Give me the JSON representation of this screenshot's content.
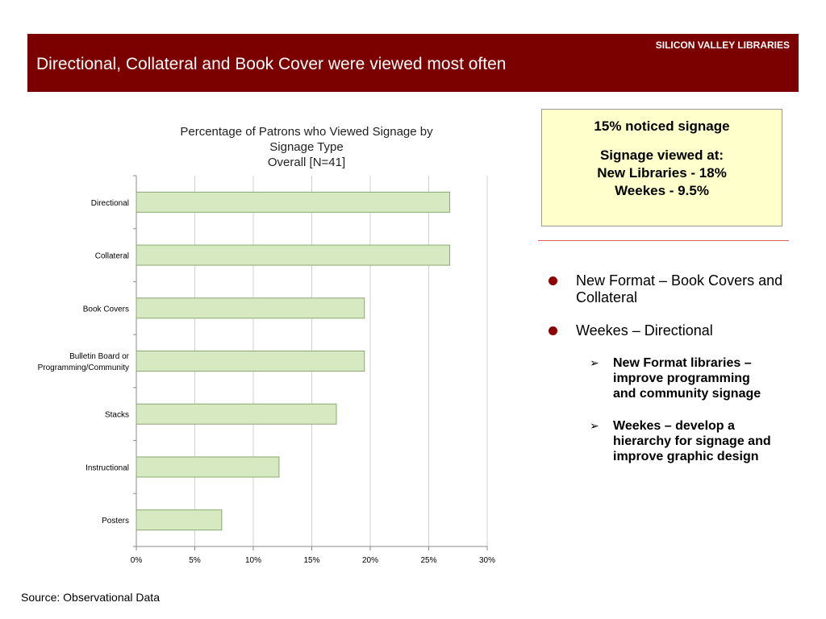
{
  "header": {
    "brand": "SILICON VALLEY LIBRARIES",
    "title": "Directional, Collateral and Book Cover were viewed most often",
    "background": "#7b0000"
  },
  "chart_data": {
    "type": "bar",
    "orientation": "horizontal",
    "title_lines": [
      "Percentage of Patrons who Viewed Signage by",
      "Signage Type",
      "Overall [N=41]"
    ],
    "categories": [
      [
        "Directional"
      ],
      [
        "Collateral"
      ],
      [
        "Book Covers"
      ],
      [
        "Bulletin Board or",
        "Programming/Community"
      ],
      [
        "Stacks"
      ],
      [
        "Instructional"
      ],
      [
        "Posters"
      ]
    ],
    "values": [
      26.8,
      26.8,
      19.5,
      19.5,
      17.1,
      12.2,
      7.3
    ],
    "xlim": [
      0,
      30
    ],
    "ticks": [
      0,
      5,
      10,
      15,
      20,
      25,
      30
    ],
    "tick_labels": [
      "0%",
      "5%",
      "10%",
      "15%",
      "20%",
      "25%",
      "30%"
    ],
    "grid": true,
    "bar_color": "#d6e9c0",
    "bar_edge": "#8aa870"
  },
  "callout": {
    "headline": "15% noticed signage",
    "sub_heading": "Signage viewed at:",
    "line_new": "New Libraries - 18%",
    "line_weekes": "Weekes - 9.5%",
    "background": "#ffffcc"
  },
  "bullets": {
    "items": [
      "New Format – Book Covers and Collateral",
      "Weekes – Directional"
    ],
    "sub_items": [
      "New Format libraries – improve programming and community signage",
      "Weekes – develop a hierarchy for signage and improve graphic design"
    ],
    "bullet_color": "#8b0000"
  },
  "footer": {
    "source": "Source: Observational Data"
  }
}
